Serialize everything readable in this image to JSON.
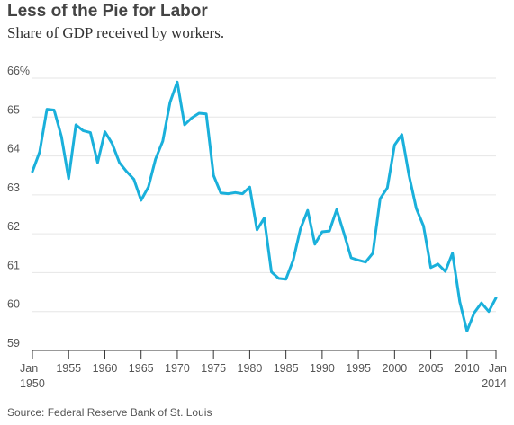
{
  "header": {
    "title": "Less of the Pie for Labor",
    "subtitle": "Share of GDP received by workers."
  },
  "footer": {
    "source": "Source: Federal Reserve Bank of St. Louis"
  },
  "colors": {
    "line": "#1ab0db",
    "grid": "#e6e6e6",
    "axis": "#333333",
    "text": "#555555"
  },
  "chart_data": {
    "type": "line",
    "title": "Less of the Pie for Labor",
    "subtitle": "Share of GDP received by workers.",
    "xlabel": "",
    "ylabel": "",
    "xlim": [
      1950,
      2014
    ],
    "ylim": [
      59,
      66
    ],
    "grid": true,
    "y_ticks": [
      {
        "value": 66,
        "label": "66%"
      },
      {
        "value": 65,
        "label": "65"
      },
      {
        "value": 64,
        "label": "64"
      },
      {
        "value": 63,
        "label": "63"
      },
      {
        "value": 62,
        "label": "62"
      },
      {
        "value": 61,
        "label": "61"
      },
      {
        "value": 60,
        "label": "60"
      },
      {
        "value": 59,
        "label": "59"
      }
    ],
    "x_ticks": [
      {
        "value": 1950,
        "label": "Jan",
        "label2": "1950"
      },
      {
        "value": 1955,
        "label": "1955"
      },
      {
        "value": 1960,
        "label": "1960"
      },
      {
        "value": 1965,
        "label": "1965"
      },
      {
        "value": 1970,
        "label": "1970"
      },
      {
        "value": 1975,
        "label": "1975"
      },
      {
        "value": 1980,
        "label": "1980"
      },
      {
        "value": 1985,
        "label": "1985"
      },
      {
        "value": 1990,
        "label": "1990"
      },
      {
        "value": 1995,
        "label": "1995"
      },
      {
        "value": 2000,
        "label": "2000"
      },
      {
        "value": 2005,
        "label": "2005"
      },
      {
        "value": 2010,
        "label": "2010"
      },
      {
        "value": 2014,
        "label": "Jan",
        "label2": "2014"
      }
    ],
    "series": [
      {
        "x": [
          1950,
          1951,
          1952,
          1953,
          1954,
          1955,
          1956,
          1957,
          1958,
          1959,
          1960,
          1961,
          1962,
          1963,
          1964,
          1965,
          1966,
          1967,
          1968,
          1969,
          1970,
          1971,
          1972,
          1973,
          1974,
          1975,
          1976,
          1977,
          1978,
          1979,
          1980,
          1981,
          1982,
          1983,
          1984,
          1985,
          1986,
          1987,
          1988,
          1989,
          1990,
          1991,
          1992,
          1993,
          1994,
          1995,
          1996,
          1997,
          1998,
          1999,
          2000,
          2001,
          2002,
          2003,
          2004,
          2005,
          2006,
          2007,
          2008,
          2009,
          2010,
          2011,
          2012,
          2013,
          2014
        ],
        "y": [
          63.6,
          64.1,
          65.2,
          65.18,
          64.5,
          63.42,
          64.8,
          64.65,
          64.6,
          63.83,
          64.62,
          64.32,
          63.83,
          63.6,
          63.4,
          62.86,
          63.2,
          63.92,
          64.38,
          65.38,
          65.9,
          64.8,
          64.98,
          65.1,
          65.08,
          63.5,
          63.05,
          63.03,
          63.06,
          63.03,
          63.2,
          62.1,
          62.4,
          61.02,
          60.85,
          60.83,
          61.32,
          62.12,
          62.6,
          61.73,
          62.05,
          62.07,
          62.62,
          62.02,
          61.38,
          61.32,
          61.27,
          61.5,
          62.9,
          63.18,
          64.28,
          64.55,
          63.5,
          62.65,
          62.2,
          61.13,
          61.22,
          61.03,
          61.5,
          60.25,
          59.5,
          59.97,
          60.22,
          60.0,
          60.35
        ]
      }
    ]
  }
}
